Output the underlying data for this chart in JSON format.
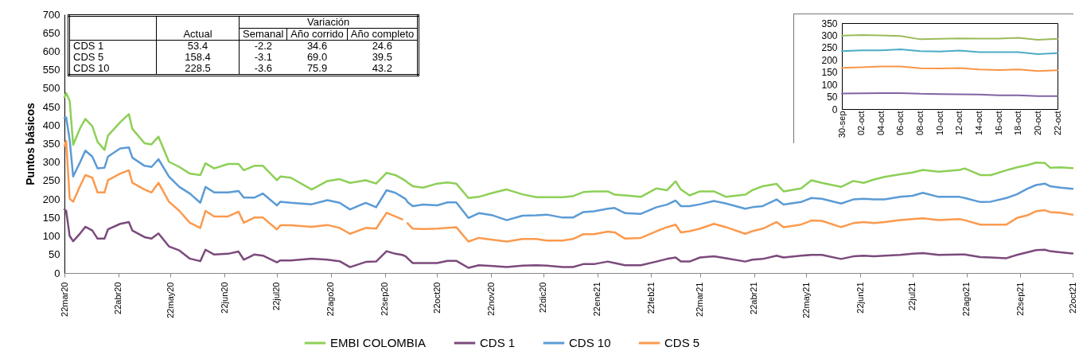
{
  "chart_data": [
    {
      "type": "line",
      "ylabel": "Puntos básicos",
      "legend": "bottom",
      "xlim": [
        "2020-03-22",
        "2021-10-22"
      ],
      "xticks": [
        {
          "value": "2020-03-22",
          "label": "22mar20"
        },
        {
          "value": "2020-04-22",
          "label": "22abr20"
        },
        {
          "value": "2020-05-22",
          "label": "22may20"
        },
        {
          "value": "2020-06-22",
          "label": "22jun20"
        },
        {
          "value": "2020-07-22",
          "label": "22jul20"
        },
        {
          "value": "2020-08-22",
          "label": "22ago20"
        },
        {
          "value": "2020-09-22",
          "label": "22sep20"
        },
        {
          "value": "2020-10-22",
          "label": "22oct20"
        },
        {
          "value": "2020-11-22",
          "label": "22nov20"
        },
        {
          "value": "2020-12-22",
          "label": "22dic20"
        },
        {
          "value": "2021-01-22",
          "label": "22ene21"
        },
        {
          "value": "2021-02-22",
          "label": "22feb21"
        },
        {
          "value": "2021-03-22",
          "label": "22mar21"
        },
        {
          "value": "2021-04-22",
          "label": "22abr21"
        },
        {
          "value": "2021-05-22",
          "label": "22may21"
        },
        {
          "value": "2021-06-22",
          "label": "22jun21"
        },
        {
          "value": "2021-07-22",
          "label": "22jul21"
        },
        {
          "value": "2021-08-22",
          "label": "22ago21"
        },
        {
          "value": "2021-09-22",
          "label": "22sep21"
        },
        {
          "value": "2021-10-22",
          "label": "22oct21"
        }
      ],
      "ylim": [
        0,
        700
      ],
      "yticks": [
        0,
        50,
        100,
        150,
        200,
        250,
        300,
        350,
        400,
        450,
        500,
        550,
        600,
        650,
        700
      ],
      "x": [
        "2020-03-22",
        "2020-03-23",
        "2020-03-25",
        "2020-03-27",
        "2020-03-31",
        "2020-04-03",
        "2020-04-07",
        "2020-04-10",
        "2020-04-14",
        "2020-04-16",
        "2020-04-23",
        "2020-04-28",
        "2020-04-30",
        "2020-05-07",
        "2020-05-11",
        "2020-05-15",
        "2020-05-21",
        "2020-05-27",
        "2020-06-02",
        "2020-06-08",
        "2020-06-11",
        "2020-06-16",
        "2020-06-24",
        "2020-06-30",
        "2020-07-03",
        "2020-07-09",
        "2020-07-14",
        "2020-07-22",
        "2020-07-24",
        "2020-07-30",
        "2020-08-11",
        "2020-08-20",
        "2020-08-27",
        "2020-09-02",
        "2020-09-11",
        "2020-09-17",
        "2020-09-23",
        "2020-09-28",
        "2020-10-02",
        "2020-10-04",
        "2020-10-05",
        "2020-10-08",
        "2020-10-14",
        "2020-10-22",
        "2020-10-28",
        "2020-11-02",
        "2020-11-09",
        "2020-11-15",
        "2020-11-23",
        "2020-12-01",
        "2020-12-10",
        "2020-12-18",
        "2020-12-24",
        "2021-01-02",
        "2021-01-08",
        "2021-01-14",
        "2021-01-20",
        "2021-01-28",
        "2021-02-01",
        "2021-02-07",
        "2021-02-16",
        "2021-02-25",
        "2021-03-03",
        "2021-03-08",
        "2021-03-11",
        "2021-03-16",
        "2021-03-22",
        "2021-03-30",
        "2021-04-06",
        "2021-04-17",
        "2021-04-21",
        "2021-04-27",
        "2021-05-05",
        "2021-05-09",
        "2021-05-19",
        "2021-05-25",
        "2021-05-31",
        "2021-06-11",
        "2021-06-18",
        "2021-06-24",
        "2021-06-30",
        "2021-07-06",
        "2021-07-15",
        "2021-07-22",
        "2021-07-28",
        "2021-08-06",
        "2021-08-18",
        "2021-08-21",
        "2021-08-30",
        "2021-09-05",
        "2021-09-14",
        "2021-09-20",
        "2021-09-26",
        "2021-10-01",
        "2021-10-06",
        "2021-10-09",
        "2021-10-15",
        "2021-10-22"
      ],
      "series": [
        {
          "name": "EMBI COLOMBIA",
          "color": "#8dcf57",
          "values": [
            476,
            487,
            466,
            347,
            392,
            417,
            397,
            355,
            333,
            372,
            408,
            430,
            390,
            351,
            348,
            369,
            301,
            287,
            269,
            265,
            297,
            283,
            295,
            295,
            278,
            290,
            290,
            251,
            261,
            258,
            226,
            249,
            254,
            244,
            251,
            242,
            271,
            265,
            255,
            249,
            245,
            235,
            231,
            242,
            245,
            242,
            203,
            206,
            217,
            226,
            213,
            205,
            205,
            205,
            208,
            219,
            221,
            221,
            212,
            210,
            206,
            229,
            224,
            248,
            226,
            210,
            221,
            221,
            206,
            212,
            224,
            235,
            241,
            221,
            229,
            251,
            244,
            233,
            249,
            244,
            253,
            260,
            267,
            272,
            279,
            274,
            279,
            283,
            265,
            265,
            278,
            286,
            292,
            299,
            298,
            285,
            286,
            284
          ]
        },
        {
          "name": "CDS 1",
          "color": "#7b4a7c",
          "values": [
            172,
            168,
            100,
            86,
            107,
            125,
            115,
            93,
            93,
            118,
            133,
            138,
            115,
            97,
            93,
            107,
            72,
            61,
            39,
            32,
            63,
            50,
            52,
            58,
            36,
            50,
            47,
            29,
            34,
            34,
            39,
            36,
            32,
            16,
            30,
            31,
            59,
            52,
            49,
            45,
            40,
            27,
            27,
            27,
            33,
            33,
            14,
            21,
            19,
            16,
            20,
            21,
            20,
            16,
            16,
            24,
            24,
            31,
            27,
            21,
            21,
            31,
            38,
            42,
            31,
            31,
            42,
            45,
            40,
            31,
            36,
            38,
            47,
            42,
            47,
            49,
            49,
            38,
            45,
            47,
            45,
            47,
            49,
            52,
            54,
            49,
            50,
            50,
            43,
            42,
            40,
            49,
            56,
            62,
            63,
            59,
            56,
            53
          ]
        },
        {
          "name": "CDS 10",
          "color": "#5b9bd5",
          "values": [
            419,
            421,
            360,
            261,
            300,
            331,
            315,
            283,
            285,
            315,
            337,
            340,
            312,
            290,
            287,
            308,
            261,
            233,
            215,
            190,
            233,
            218,
            218,
            222,
            204,
            204,
            215,
            183,
            193,
            190,
            186,
            197,
            190,
            172,
            190,
            178,
            224,
            217,
            206,
            200,
            192,
            181,
            185,
            183,
            191,
            191,
            149,
            162,
            156,
            143,
            155,
            156,
            158,
            150,
            150,
            165,
            167,
            174,
            176,
            162,
            160,
            178,
            185,
            196,
            181,
            181,
            186,
            195,
            188,
            174,
            178,
            181,
            199,
            185,
            192,
            203,
            201,
            188,
            199,
            201,
            199,
            199,
            206,
            209,
            217,
            206,
            206,
            203,
            192,
            193,
            203,
            213,
            228,
            238,
            242,
            235,
            231,
            228
          ]
        },
        {
          "name": "CDS 5",
          "color": "#fb9a4e",
          "values": [
            344,
            357,
            201,
            193,
            236,
            265,
            258,
            218,
            218,
            251,
            269,
            278,
            244,
            226,
            218,
            244,
            193,
            168,
            136,
            122,
            168,
            153,
            153,
            166,
            136,
            150,
            150,
            118,
            129,
            129,
            125,
            130,
            122,
            106,
            122,
            120,
            163,
            153,
            145,
            null,
            135,
            120,
            119,
            120,
            122,
            124,
            85,
            95,
            90,
            85,
            92,
            92,
            88,
            88,
            92,
            105,
            105,
            112,
            110,
            93,
            95,
            113,
            124,
            131,
            110,
            113,
            120,
            133,
            124,
            106,
            113,
            120,
            138,
            124,
            131,
            142,
            141,
            124,
            135,
            138,
            135,
            138,
            143,
            146,
            148,
            143,
            146,
            143,
            131,
            131,
            131,
            149,
            156,
            167,
            170,
            165,
            163,
            158
          ]
        }
      ]
    },
    {
      "type": "other",
      "annotations": [
        "Variación",
        "Actual",
        "Semanal",
        "Año corrido",
        "Año completo",
        "CDS 1",
        "53.4",
        "-2.2",
        "34.6",
        "24.6",
        "CDS 5",
        "158.4",
        "-3.1",
        "69.0",
        "39.5",
        "CDS 10",
        "228.5",
        "-3.6",
        "75.9",
        "43.2"
      ]
    },
    {
      "type": "line",
      "categories": [
        "30-sep",
        "02-oct",
        "04-oct",
        "06-oct",
        "08-oct",
        "10-oct",
        "12-oct",
        "14-oct",
        "16-oct",
        "18-oct",
        "20-oct",
        "22-oct"
      ],
      "ylim": [
        0,
        350
      ],
      "yticks": [
        0,
        50,
        100,
        150,
        200,
        250,
        300,
        350
      ],
      "series": [
        {
          "color": "#9bbb59",
          "values": [
            299,
            301,
            300,
            297,
            284,
            286,
            288,
            287,
            287,
            290,
            282,
            286
          ]
        },
        {
          "color": "#4bacc6",
          "values": [
            236,
            239,
            239,
            243,
            236,
            234,
            238,
            232,
            232,
            232,
            224,
            228
          ]
        },
        {
          "color": "#f79646",
          "values": [
            168,
            170,
            173,
            173,
            166,
            165,
            167,
            161,
            159,
            161,
            155,
            158
          ]
        },
        {
          "color": "#8064a2",
          "values": [
            63,
            64,
            65,
            65,
            62,
            61,
            60,
            59,
            56,
            56,
            53,
            53
          ]
        }
      ]
    }
  ]
}
